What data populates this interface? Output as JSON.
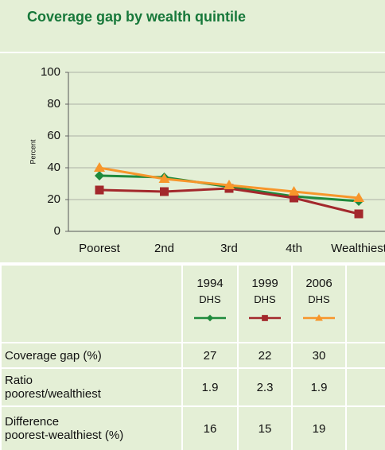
{
  "chart_data": {
    "type": "line",
    "title": "Coverage gap by wealth quintile",
    "ylabel": "Percent",
    "categories": [
      "Poorest",
      "2nd",
      "3rd",
      "4th",
      "Wealthiest"
    ],
    "series": [
      {
        "name": "1994",
        "subtitle": "DHS",
        "color": "#1f8a3c",
        "marker": "diamond",
        "values": [
          35,
          34,
          28,
          22,
          19
        ]
      },
      {
        "name": "1999",
        "subtitle": "DHS",
        "color": "#a3282c",
        "marker": "square",
        "values": [
          26,
          25,
          27,
          21,
          11
        ]
      },
      {
        "name": "2006",
        "subtitle": "DHS",
        "color": "#f7962b",
        "marker": "triangle",
        "values": [
          40,
          33,
          29,
          25,
          21
        ]
      }
    ],
    "ylim": [
      0,
      100
    ],
    "yticks": [
      0,
      20,
      40,
      60,
      80,
      100
    ],
    "grid": true
  },
  "table": {
    "rows": [
      {
        "label": "Coverage gap (%)",
        "values": [
          27,
          22,
          30
        ]
      },
      {
        "label": "Ratio\npoorest/wealthiest",
        "values": [
          1.9,
          2.3,
          1.9
        ]
      },
      {
        "label": "Difference\npoorest-wealthiest (%)",
        "values": [
          16,
          15,
          19
        ]
      }
    ]
  }
}
